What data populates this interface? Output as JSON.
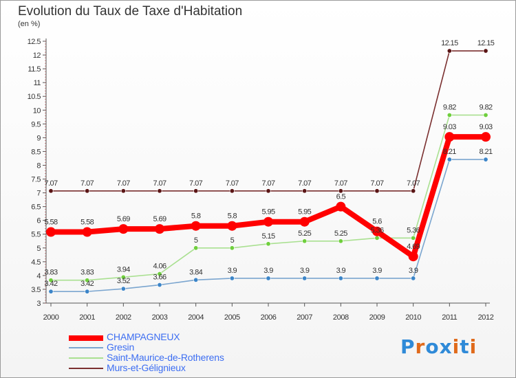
{
  "header": {
    "title": "Evolution du Taux de Taxe d'Habitation",
    "subtitle": "(en %)"
  },
  "logo": {
    "text": "Proxiti",
    "letters": [
      "P",
      "r",
      "o",
      "x",
      "i",
      "t",
      "i"
    ],
    "colors": [
      "#2f8ad8",
      "#e06a1b",
      "#2f8ad8",
      "#2f8ad8",
      "#e06a1b",
      "#2f8ad8",
      "#e06a1b"
    ]
  },
  "chart_data": {
    "type": "line",
    "title": "Evolution du Taux de Taxe d'Habitation",
    "subtitle": "(en %)",
    "xlabel": "",
    "ylabel": "",
    "x": [
      "2000",
      "2001",
      "2002",
      "2003",
      "2004",
      "2005",
      "2006",
      "2007",
      "2008",
      "2009",
      "2010",
      "2011",
      "2012"
    ],
    "ylim": [
      3,
      12.5
    ],
    "ytick_step": 0.5,
    "yticks": [
      "3",
      "3.5",
      "4",
      "4.5",
      "5",
      "5.5",
      "6",
      "6.5",
      "7",
      "7.5",
      "8",
      "8.5",
      "9",
      "9.5",
      "10",
      "10.5",
      "11",
      "11.5",
      "12",
      "12.5"
    ],
    "grid": false,
    "legend_position": "bottom-left",
    "series": [
      {
        "name": "CHAMPAGNEUX",
        "color": "#ff0000",
        "marker_color": "#ff0000",
        "emphasis": true,
        "values": [
          5.58,
          5.58,
          5.69,
          5.69,
          5.8,
          5.8,
          5.95,
          5.95,
          6.5,
          5.6,
          4.69,
          9.03,
          9.03
        ],
        "labels": [
          "5.58",
          "5.58",
          "5.69",
          "5.69",
          "5.8",
          "5.8",
          "5.95",
          "5.95",
          "6.5",
          "5.6",
          "4.69",
          "9.03",
          "9.03"
        ]
      },
      {
        "name": "Gresin",
        "color": "#7aa5cf",
        "marker_color": "#3c85c8",
        "emphasis": false,
        "values": [
          3.42,
          3.42,
          3.52,
          3.66,
          3.84,
          3.9,
          3.9,
          3.9,
          3.9,
          3.9,
          3.9,
          8.21,
          8.21
        ],
        "labels": [
          "3.42",
          "3.42",
          "3.52",
          "3.66",
          "3.84",
          "3.9",
          "3.9",
          "3.9",
          "3.9",
          "3.9",
          "3.9",
          "8.21",
          "8.21"
        ]
      },
      {
        "name": "Saint-Maurice-de-Rotherens",
        "color": "#a9e090",
        "marker_color": "#6fcf3d",
        "emphasis": false,
        "values": [
          3.83,
          3.83,
          3.94,
          4.06,
          5.0,
          5.0,
          5.15,
          5.25,
          5.25,
          5.36,
          5.36,
          9.82,
          9.82
        ],
        "labels": [
          "3.83",
          "3.83",
          "3.94",
          "4.06",
          "5",
          "5",
          "5.15",
          "5.25",
          "5.25",
          "5.36",
          "5.36",
          "9.82",
          "9.82"
        ]
      },
      {
        "name": "Murs-et-Gélignieux",
        "color": "#7a2f2f",
        "marker_color": "#5a1515",
        "emphasis": false,
        "values": [
          7.07,
          7.07,
          7.07,
          7.07,
          7.07,
          7.07,
          7.07,
          7.07,
          7.07,
          7.07,
          7.07,
          12.15,
          12.15
        ],
        "labels": [
          "7.07",
          "7.07",
          "7.07",
          "7.07",
          "7.07",
          "7.07",
          "7.07",
          "7.07",
          "7.07",
          "7.07",
          "7.07",
          "12.15",
          "12.15"
        ]
      }
    ]
  }
}
